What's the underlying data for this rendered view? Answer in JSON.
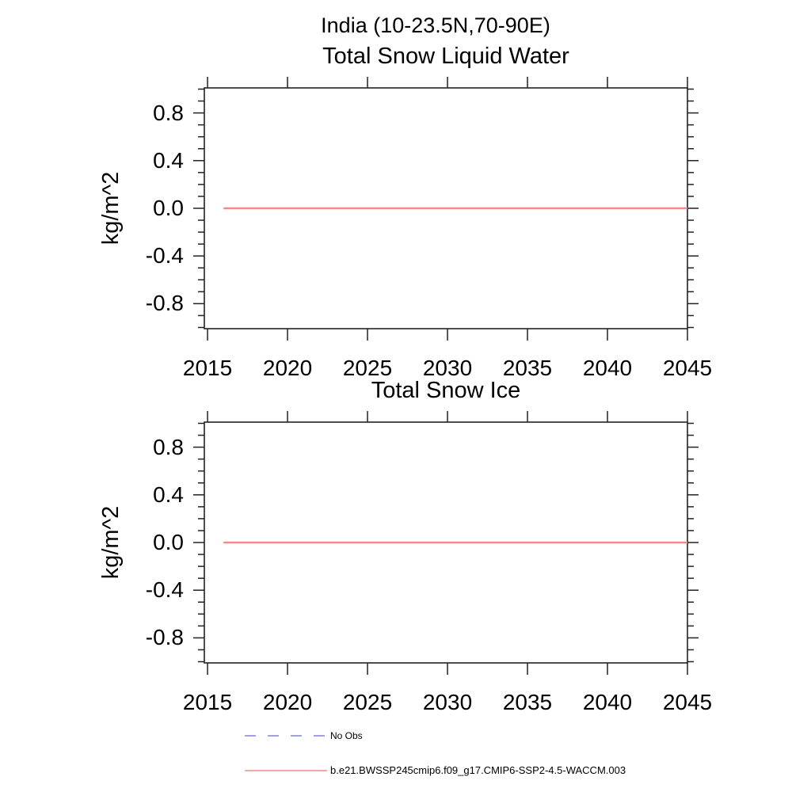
{
  "page": {
    "title": "India (10-23.5N,70-90E)"
  },
  "colors": {
    "model_line": "#fa8888",
    "no_obs_line": "#8080dd",
    "axis": "#222222",
    "text": "#000000",
    "background": "#ffffff"
  },
  "legend": {
    "items": [
      {
        "label": "No Obs",
        "style": "dashed",
        "color": "#8080dd"
      },
      {
        "label": "b.e21.BWSSP245cmip6.f09_g17.CMIP6-SSP2-4.5-WACCM.003",
        "style": "solid",
        "color": "#fa8888"
      }
    ]
  },
  "chart_data": [
    {
      "type": "line",
      "title": "Total Snow Liquid Water",
      "xlabel": "",
      "ylabel": "kg/m^2",
      "xlim": [
        2014.8,
        2045
      ],
      "ylim": [
        -1.01,
        1.01
      ],
      "grid": false,
      "xticks": [
        2015,
        2020,
        2025,
        2030,
        2035,
        2040,
        2045
      ],
      "xtick_labels": [
        "2015",
        "2020",
        "2025",
        "2030",
        "2035",
        "2040",
        "2045"
      ],
      "yticks": [
        0.8,
        0.4,
        0.0,
        -0.4,
        -0.8
      ],
      "ytick_labels": [
        "0.8",
        "0.4",
        "0.0",
        "-0.4",
        "-0.8"
      ],
      "yminor_step": 0.1,
      "series": [
        {
          "name": "b.e21.BWSSP245cmip6.f09_g17.CMIP6-SSP2-4.5-WACCM.003",
          "x": [
            2016,
            2045
          ],
          "y": [
            0.0,
            0.0
          ],
          "color": "#fa8888",
          "style": "solid"
        }
      ]
    },
    {
      "type": "line",
      "title": "Total Snow Ice",
      "xlabel": "",
      "ylabel": "kg/m^2",
      "xlim": [
        2014.8,
        2045
      ],
      "ylim": [
        -1.01,
        1.01
      ],
      "grid": false,
      "xticks": [
        2015,
        2020,
        2025,
        2030,
        2035,
        2040,
        2045
      ],
      "xtick_labels": [
        "2015",
        "2020",
        "2025",
        "2030",
        "2035",
        "2040",
        "2045"
      ],
      "yticks": [
        0.8,
        0.4,
        0.0,
        -0.4,
        -0.8
      ],
      "ytick_labels": [
        "0.8",
        "0.4",
        "0.0",
        "-0.4",
        "-0.8"
      ],
      "yminor_step": 0.1,
      "series": [
        {
          "name": "b.e21.BWSSP245cmip6.f09_g17.CMIP6-SSP2-4.5-WACCM.003",
          "x": [
            2016,
            2045
          ],
          "y": [
            0.0,
            0.0
          ],
          "color": "#fa8888",
          "style": "solid"
        }
      ]
    }
  ]
}
